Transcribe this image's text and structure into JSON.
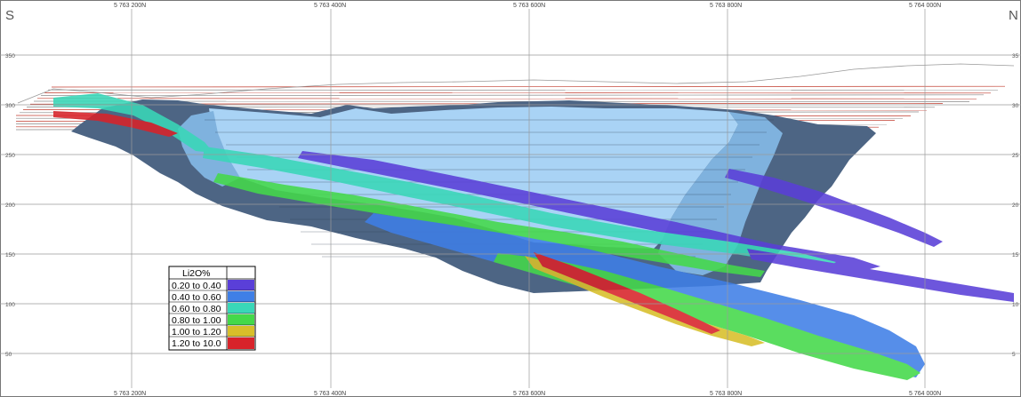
{
  "directions": {
    "left": "S",
    "right": "N"
  },
  "northings": [
    "5 763 200N",
    "5 763 400N",
    "5 763 600N",
    "5 763 800N",
    "5 764 000N"
  ],
  "elevations_left": [
    "350",
    "300",
    "250",
    "200",
    "150",
    "100",
    "50"
  ],
  "elevations_right": [
    "35",
    "30",
    "25",
    "20",
    "15",
    "10",
    "5"
  ],
  "legend": {
    "title": "Li2O%",
    "items": [
      {
        "label": "0.20 to 0.40",
        "color": "#5a3fd8"
      },
      {
        "label": "0.40 to 0.60",
        "color": "#3f7fe6"
      },
      {
        "label": "0.60 to 0.80",
        "color": "#39d7b8"
      },
      {
        "label": "0.80 to 1.00",
        "color": "#44d94a"
      },
      {
        "label": "1.00 to 1.20",
        "color": "#d8bf2a"
      },
      {
        "label": "1.20 to 10.0",
        "color": "#d8232a"
      }
    ]
  },
  "colors": {
    "pit_light": "#a9d3f5",
    "pit_mid": "#7fb2de",
    "pit_dark": "#4d6584",
    "topo_red": "#c0392b",
    "topo_gray": "#8a8a8a"
  }
}
